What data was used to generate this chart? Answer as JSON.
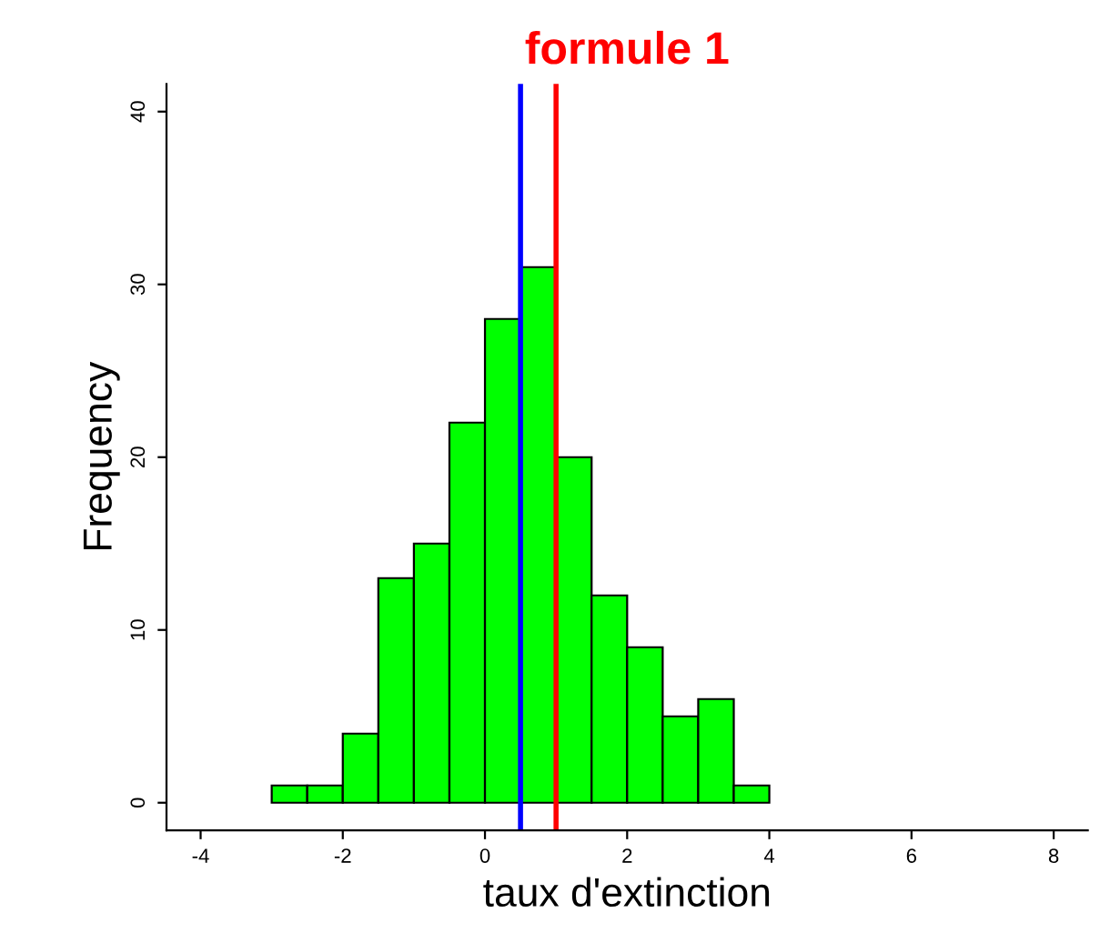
{
  "chart_data": {
    "type": "histogram",
    "title": "formule 1",
    "xlabel": "taux d'extinction",
    "ylabel": "Frequency",
    "bins": [
      -3,
      -2.5,
      -2,
      -1.5,
      -1,
      -0.5,
      0,
      0.5,
      1,
      1.5,
      2,
      2.5,
      3,
      3.5,
      4
    ],
    "values": [
      1,
      1,
      4,
      13,
      15,
      22,
      28,
      31,
      20,
      12,
      9,
      5,
      6,
      1
    ],
    "color": "#00ff00",
    "xlim": [
      -4.48,
      8.48
    ],
    "xticks": [
      -4,
      -2,
      0,
      2,
      4,
      6,
      8
    ],
    "ylim": [
      -1.6,
      41.6
    ],
    "yticks": [
      0,
      10,
      20,
      30,
      40
    ],
    "ref_lines": [
      {
        "axis": "x",
        "value": 0.5,
        "color": "#0000ff"
      },
      {
        "axis": "x",
        "value": 1,
        "color": "#ff0000"
      }
    ],
    "grid": false
  }
}
